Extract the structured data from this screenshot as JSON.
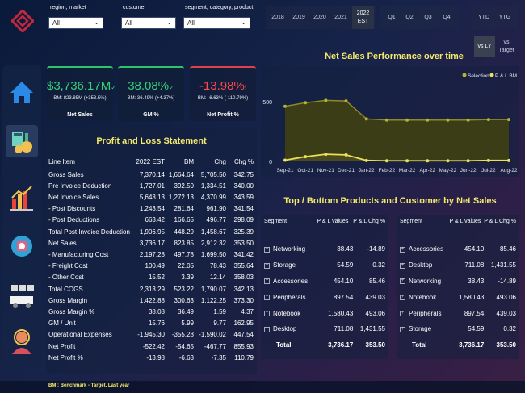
{
  "filters": {
    "region": {
      "label": "region, market",
      "value": "All"
    },
    "customer": {
      "label": "customer",
      "value": "All"
    },
    "segment": {
      "label": "segment, category, product",
      "value": "All"
    }
  },
  "years": [
    "2018",
    "2019",
    "2020",
    "2021"
  ],
  "year_selected": "2022 EST",
  "quarters": [
    "Q1",
    "Q2",
    "Q3",
    "Q4"
  ],
  "periods": [
    "YTD",
    "YTG"
  ],
  "compare": {
    "ly": "vs LY",
    "target": "vs Target"
  },
  "kpis": [
    {
      "value": "$3,736.17M",
      "mark": "✓",
      "sub": "BM: 823.85M (+353.5%)",
      "name": "Net Sales",
      "color": "#33d17a",
      "border": "#2ec36f"
    },
    {
      "value": "38.08%",
      "mark": "✓",
      "sub": "BM: 36.49% (+4.37%)",
      "name": "GM %",
      "color": "#33d17a",
      "border": "#2ec36f"
    },
    {
      "value": "-13.98%",
      "mark": "!",
      "sub": "BM: -6.63% (-110.79%)",
      "name": "Net Profit %",
      "color": "#ff4b4b",
      "border": "#e0414a"
    }
  ],
  "pl": {
    "title": "Profit and Loss Statement",
    "headers": [
      "Line Item",
      "2022 EST",
      "BM",
      "Chg",
      "Chg %"
    ],
    "rows": [
      [
        "Gross Sales",
        "7,370.14",
        "1,664.64",
        "5,705.50",
        "342.75"
      ],
      [
        "Pre Invoice Deduction",
        "1,727.01",
        "392.50",
        "1,334.51",
        "340.00"
      ],
      [
        "Net Invoice Sales",
        "5,643.13",
        "1,272.13",
        "4,370.99",
        "343.59"
      ],
      [
        "- Post Discounts",
        "1,243.54",
        "281.64",
        "961.90",
        "341.54"
      ],
      [
        "- Post Deductions",
        "663.42",
        "166.65",
        "496.77",
        "298.09"
      ],
      [
        "Total Post Invoice Deduction",
        "1,906.95",
        "448.29",
        "1,458.67",
        "325.39"
      ],
      [
        "Net Sales",
        "3,736.17",
        "823.85",
        "2,912.32",
        "353.50"
      ],
      [
        "- Manufacturing Cost",
        "2,197.28",
        "497.78",
        "1,699.50",
        "341.42"
      ],
      [
        "- Freight Cost",
        "100.49",
        "22.05",
        "78.43",
        "355.64"
      ],
      [
        "- Other Cost",
        "15.52",
        "3.39",
        "12.14",
        "358.03"
      ],
      [
        "Total COGS",
        "2,313.29",
        "523.22",
        "1,790.07",
        "342.13"
      ],
      [
        "Gross Margin",
        "1,422.88",
        "300.63",
        "1,122.25",
        "373.30"
      ],
      [
        "Gross Margin %",
        "38.08",
        "36.49",
        "1.59",
        "4.37"
      ],
      [
        "GM / Unit",
        "15.76",
        "5.99",
        "9.77",
        "162.95"
      ],
      [
        "Operational Expenses",
        "-1,945.30",
        "-355.28",
        "-1,590.02",
        "447.54"
      ],
      [
        "Net Profit",
        "-522.42",
        "-54.65",
        "-467.77",
        "855.93"
      ],
      [
        "Net Profit %",
        "-13.98",
        "-6.63",
        "-7.35",
        "110.79"
      ]
    ]
  },
  "chart_data": {
    "type": "area",
    "title": "Net Sales Performance over time",
    "categories": [
      "Sep-21",
      "Oct-21",
      "Nov-21",
      "Dec-21",
      "Jan-22",
      "Feb-22",
      "Mar-22",
      "Apr-22",
      "May-22",
      "Jun-22",
      "Jul-22",
      "Aug-22"
    ],
    "series": [
      {
        "name": "Selection",
        "values": [
          460,
          490,
          510,
          505,
          355,
          345,
          345,
          345,
          345,
          345,
          350,
          350
        ],
        "color": "#3d3f14"
      },
      {
        "name": "P & L BM",
        "values": [
          10,
          40,
          60,
          55,
          8,
          5,
          5,
          5,
          5,
          5,
          8,
          8
        ],
        "color": "#e8e25a"
      }
    ],
    "y_ticks": [
      "500",
      "0"
    ],
    "ylim": [
      0,
      620
    ]
  },
  "top_bottom": {
    "title": "Top / Bottom Products and Customer by Net Sales",
    "left": {
      "headers": [
        "Segment",
        "P & L values",
        "P & L Chg %"
      ],
      "rows": [
        [
          "Networking",
          "38.43",
          "-14.89"
        ],
        [
          "Storage",
          "54.59",
          "0.32"
        ],
        [
          "Accessories",
          "454.10",
          "85.46"
        ],
        [
          "Peripherals",
          "897.54",
          "439.03"
        ],
        [
          "Notebook",
          "1,580.43",
          "493.06"
        ],
        [
          "Desktop",
          "711.08",
          "1,431.55"
        ]
      ],
      "total": [
        "Total",
        "3,736.17",
        "353.50"
      ]
    },
    "right": {
      "headers": [
        "Segment",
        "P & L values",
        "P & L Chg %"
      ],
      "rows": [
        [
          "Accessories",
          "454.10",
          "85.46"
        ],
        [
          "Desktop",
          "711.08",
          "1,431.55"
        ],
        [
          "Networking",
          "38.43",
          "-14.89"
        ],
        [
          "Notebook",
          "1,580.43",
          "493.06"
        ],
        [
          "Peripherals",
          "897.54",
          "439.03"
        ],
        [
          "Storage",
          "54.59",
          "0.32"
        ]
      ],
      "total": [
        "Total",
        "3,736.17",
        "353.50"
      ]
    }
  },
  "footer": "BM : Benchmark - Target, Last year"
}
